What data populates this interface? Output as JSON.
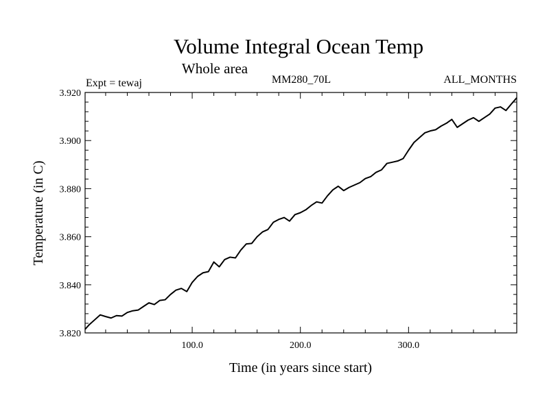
{
  "chart_data": {
    "type": "line",
    "title": "Volume Integral Ocean Temp",
    "subtitle": "Whole area",
    "left_label": "Expt = tewaj",
    "center_label": "MM280_70L",
    "right_label": "ALL_MONTHS",
    "xlabel": "Time (in years since start)",
    "ylabel": "Temperature (in C)",
    "xlim": [
      1,
      400
    ],
    "ylim": [
      3.82,
      3.92
    ],
    "x_ticks": [
      100.0,
      200.0,
      300.0
    ],
    "x_tick_labels": [
      "100.0",
      "200.0",
      "300.0"
    ],
    "y_ticks": [
      3.82,
      3.84,
      3.86,
      3.88,
      3.9,
      3.92
    ],
    "y_tick_labels": [
      "3.820",
      "3.840",
      "3.860",
      "3.880",
      "3.900",
      "3.920"
    ],
    "grid": false,
    "legend": "none",
    "line_color": "#000000",
    "series": [
      {
        "x": [
          1,
          5,
          10,
          15,
          20,
          25,
          30,
          35,
          40,
          45,
          50,
          55,
          60,
          65,
          70,
          75,
          80,
          85,
          90,
          95,
          100,
          105,
          110,
          115,
          120,
          125,
          130,
          135,
          140,
          145,
          150,
          155,
          160,
          165,
          170,
          175,
          180,
          185,
          190,
          195,
          200,
          205,
          210,
          215,
          220,
          225,
          230,
          235,
          240,
          245,
          250,
          255,
          260,
          265,
          270,
          275,
          280,
          285,
          290,
          295,
          300,
          305,
          310,
          315,
          320,
          325,
          330,
          335,
          340,
          345,
          350,
          355,
          360,
          365,
          370,
          375,
          380,
          385,
          390,
          395,
          400
        ],
        "values": [
          3.8215,
          3.8235,
          3.8255,
          3.8275,
          3.8268,
          3.8262,
          3.8272,
          3.827,
          3.8285,
          3.8292,
          3.8295,
          3.831,
          3.8325,
          3.8318,
          3.8335,
          3.8338,
          3.836,
          3.8378,
          3.8385,
          3.8372,
          3.841,
          3.8435,
          3.845,
          3.8455,
          3.8495,
          3.8475,
          3.8505,
          3.8515,
          3.8512,
          3.8545,
          3.857,
          3.8572,
          3.86,
          3.862,
          3.863,
          3.866,
          3.8672,
          3.868,
          3.8665,
          3.8692,
          3.87,
          3.8712,
          3.873,
          3.8745,
          3.874,
          3.877,
          3.8795,
          3.881,
          3.8792,
          3.8805,
          3.8815,
          3.8825,
          3.8842,
          3.885,
          3.8868,
          3.8878,
          3.8905,
          3.891,
          3.8915,
          3.8925,
          3.896,
          3.8992,
          3.9012,
          3.9032,
          3.904,
          3.9045,
          3.906,
          3.9072,
          3.9088,
          3.9055,
          3.907,
          3.9085,
          3.9095,
          3.908,
          3.9095,
          3.911,
          3.9135,
          3.914,
          3.9125,
          3.9152,
          3.9178
        ]
      }
    ]
  }
}
